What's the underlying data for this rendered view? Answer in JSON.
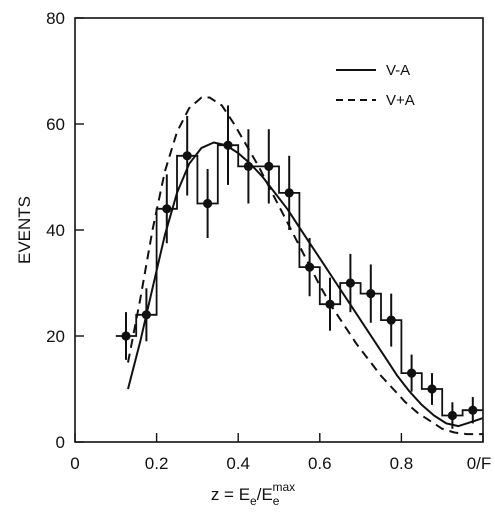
{
  "chart_data": {
    "type": "line",
    "title": "",
    "ylabel": "EVENTS",
    "xlabel": {
      "prefix": "z = E",
      "sub1": "e",
      "slash": "/E",
      "sub2": "e",
      "sup": "max"
    },
    "xlim": [
      0,
      1.0
    ],
    "ylim": [
      0,
      80
    ],
    "x_ticks": [
      {
        "value": 0,
        "label": "0"
      },
      {
        "value": 0.2,
        "label": "0.2"
      },
      {
        "value": 0.4,
        "label": "0.4"
      },
      {
        "value": 0.6,
        "label": "0.6"
      },
      {
        "value": 0.8,
        "label": "0.8"
      },
      {
        "value": 1.0,
        "label": "0/F"
      }
    ],
    "y_ticks": [
      0,
      20,
      40,
      60,
      80
    ],
    "grid": false,
    "legend_position": "top-right",
    "series": [
      {
        "name": "V-A",
        "kind": "curve",
        "style": "solid",
        "x": [
          0.13,
          0.16,
          0.19,
          0.22,
          0.25,
          0.28,
          0.31,
          0.34,
          0.37,
          0.4,
          0.43,
          0.46,
          0.49,
          0.52,
          0.55,
          0.58,
          0.61,
          0.64,
          0.67,
          0.7,
          0.73,
          0.76,
          0.79,
          0.82,
          0.85,
          0.88,
          0.91,
          0.94,
          0.96,
          0.98,
          1.0
        ],
        "y": [
          10,
          19,
          29,
          39,
          47,
          52.5,
          55.5,
          56.5,
          56,
          54.5,
          52.5,
          50,
          47,
          44,
          40.5,
          37,
          33.5,
          30,
          26.5,
          23,
          19.5,
          16,
          12.5,
          9.5,
          7,
          5,
          3.5,
          3,
          3.5,
          4,
          4.5
        ]
      },
      {
        "name": "V+A",
        "kind": "curve",
        "style": "dashed",
        "x": [
          0.13,
          0.16,
          0.19,
          0.22,
          0.25,
          0.28,
          0.31,
          0.33,
          0.36,
          0.39,
          0.42,
          0.45,
          0.48,
          0.51,
          0.54,
          0.57,
          0.6,
          0.63,
          0.66,
          0.69,
          0.72,
          0.75,
          0.78,
          0.81,
          0.84,
          0.87,
          0.9,
          0.93,
          0.96,
          1.0
        ],
        "y": [
          15,
          27,
          40,
          51,
          58.5,
          63,
          65,
          65,
          63.5,
          60,
          56,
          52,
          47.5,
          43,
          38.5,
          34,
          29.5,
          25.5,
          22,
          18.5,
          15.5,
          12.5,
          10,
          7.5,
          5.5,
          4,
          2.5,
          1.8,
          1.5,
          1.5
        ]
      },
      {
        "name": "histogram",
        "kind": "step",
        "bin_width": 0.05,
        "x": [
          0.125,
          0.175,
          0.225,
          0.275,
          0.325,
          0.375,
          0.425,
          0.475,
          0.525,
          0.575,
          0.625,
          0.675,
          0.725,
          0.775,
          0.825,
          0.875,
          0.925,
          0.975
        ],
        "y": [
          20,
          24,
          44,
          54,
          45,
          56,
          52,
          52,
          47,
          33,
          26,
          30,
          28,
          23,
          13,
          10,
          5,
          6
        ]
      },
      {
        "name": "data",
        "kind": "points",
        "x": [
          0.125,
          0.175,
          0.225,
          0.275,
          0.325,
          0.375,
          0.425,
          0.475,
          0.525,
          0.575,
          0.625,
          0.675,
          0.725,
          0.775,
          0.825,
          0.875,
          0.925,
          0.975
        ],
        "y": [
          20,
          24,
          44,
          54,
          45,
          56,
          52,
          52,
          47,
          33,
          26,
          30,
          28,
          23,
          13,
          10,
          5,
          6
        ],
        "err": [
          4.5,
          5,
          6.5,
          7.5,
          6.5,
          7.5,
          7,
          7,
          7,
          5.5,
          5,
          5.5,
          5.5,
          5,
          3.5,
          3,
          2.5,
          2.5
        ]
      }
    ],
    "legend": [
      {
        "label": "V-A",
        "style": "solid"
      },
      {
        "label": "V+A",
        "style": "dashed"
      }
    ]
  }
}
